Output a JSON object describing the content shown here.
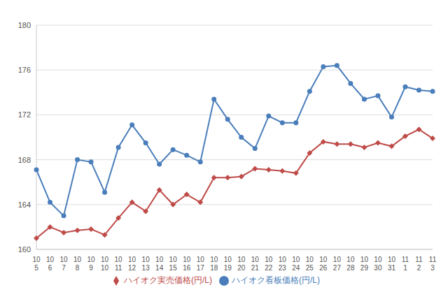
{
  "chart_data": {
    "type": "line",
    "categories": [
      "10\n5",
      "10\n6",
      "10\n7",
      "10\n8",
      "10\n9",
      "10\n10",
      "10\n11",
      "10\n12",
      "10\n13",
      "10\n14",
      "10\n15",
      "10\n16",
      "10\n17",
      "10\n18",
      "10\n19",
      "10\n20",
      "10\n21",
      "10\n22",
      "10\n23",
      "10\n24",
      "10\n25",
      "10\n26",
      "10\n27",
      "10\n28",
      "10\n29",
      "10\n30",
      "10\n31",
      "11\n1",
      "11\n2",
      "11\n3"
    ],
    "series": [
      {
        "name": "ハイオク看板価格(円/L)",
        "color": "#4a7ebb",
        "marker": "circle",
        "values": [
          167.1,
          164.2,
          163.0,
          168.0,
          167.8,
          165.1,
          169.1,
          171.1,
          169.5,
          167.6,
          168.9,
          168.4,
          167.8,
          173.4,
          171.6,
          170.0,
          169.0,
          171.9,
          171.3,
          171.3,
          174.1,
          176.3,
          176.4,
          174.8,
          173.4,
          173.7,
          171.8,
          174.5,
          174.2,
          174.1
        ]
      },
      {
        "name": "ハイオク実売価格(円/L)",
        "color": "#be4b48",
        "marker": "diamond",
        "values": [
          161.0,
          162.0,
          161.5,
          161.7,
          161.8,
          161.3,
          162.8,
          164.2,
          163.4,
          165.3,
          164.0,
          164.9,
          164.2,
          166.4,
          166.4,
          166.5,
          167.2,
          167.1,
          167.0,
          166.8,
          168.6,
          169.6,
          169.4,
          169.4,
          169.1,
          169.5,
          169.2,
          170.1,
          170.7,
          169.9
        ]
      }
    ],
    "ylim": [
      160,
      180
    ],
    "yticks": [
      160,
      164,
      168,
      172,
      176,
      180
    ],
    "grid": true,
    "legend": "bottom"
  }
}
